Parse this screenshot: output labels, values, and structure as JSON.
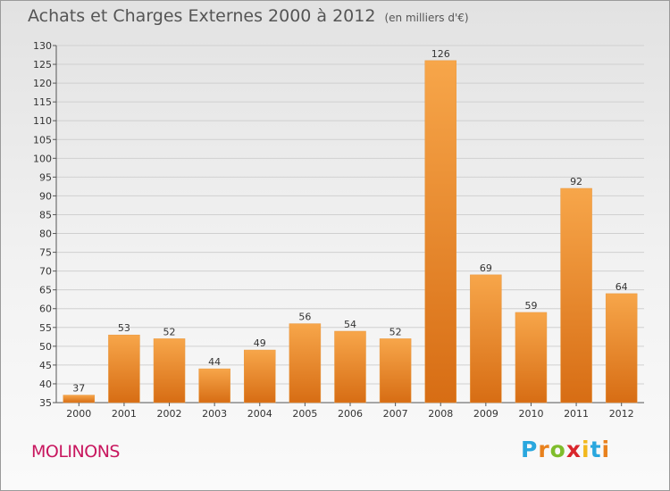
{
  "title": "Achats et Charges Externes 2000 à 2012",
  "unit": "(en milliers d'€)",
  "commune": "MOLINONS",
  "logo": {
    "text": "Proxiti",
    "colors": [
      "#2aa7de",
      "#e8811d",
      "#7fbd2c",
      "#d9262c",
      "#f2b81c",
      "#2aa7de",
      "#e8811d"
    ]
  },
  "colors": {
    "bar_light": "#f7a64a",
    "bar_dark": "#d76d14",
    "axis": "#555555",
    "grid": "#d0d0d0",
    "label": "#333333"
  },
  "chart_data": {
    "type": "bar",
    "categories": [
      "2000",
      "2001",
      "2002",
      "2003",
      "2004",
      "2005",
      "2006",
      "2007",
      "2008",
      "2009",
      "2010",
      "2011",
      "2012"
    ],
    "values": [
      37,
      53,
      52,
      44,
      49,
      56,
      54,
      52,
      126,
      69,
      59,
      92,
      64
    ],
    "ylim": [
      35,
      130
    ],
    "yticks": [
      35,
      40,
      45,
      50,
      55,
      60,
      65,
      70,
      75,
      80,
      85,
      90,
      95,
      100,
      105,
      110,
      115,
      120,
      125,
      130
    ],
    "grid": true,
    "legend": "none"
  }
}
